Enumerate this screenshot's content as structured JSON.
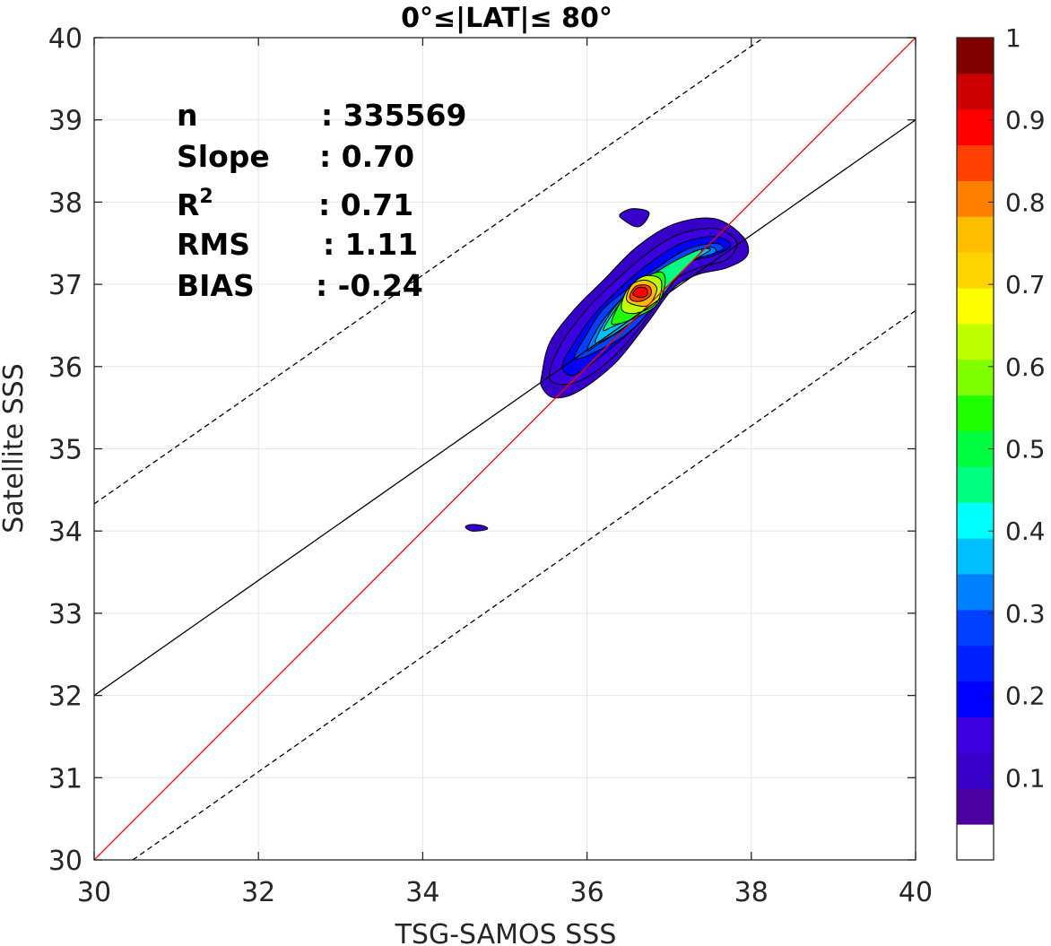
{
  "chart_data": {
    "type": "contour",
    "title": "0°≤|LAT|≤ 80°",
    "xlabel": "TSG-SAMOS SSS",
    "ylabel": "Satellite SSS",
    "xlim": [
      30,
      40
    ],
    "ylim": [
      30,
      40
    ],
    "xticks": [
      "30",
      "32",
      "34",
      "36",
      "38",
      "40"
    ],
    "yticks": [
      "30",
      "31",
      "32",
      "33",
      "34",
      "35",
      "36",
      "37",
      "38",
      "39",
      "40"
    ],
    "grid": true,
    "stats": [
      {
        "label": "n",
        "sep": ":",
        "value": "335569"
      },
      {
        "label": "Slope",
        "sep": ":",
        "value": "0.70"
      },
      {
        "label": "R",
        "sup": "2",
        "sep": ":",
        "value": "0.71"
      },
      {
        "label": "RMS",
        "sep": ":",
        "value": "1.11"
      },
      {
        "label": "BIAS",
        "sep": ":",
        "value": "-0.24"
      }
    ],
    "lines": {
      "one_to_one": {
        "color": "#ff0000",
        "x": [
          30,
          40
        ],
        "y": [
          30,
          40
        ]
      },
      "fit": {
        "color": "#000000",
        "x": [
          30,
          40
        ],
        "y": [
          32.0,
          39.0
        ]
      },
      "upper_bound": {
        "color": "#000000",
        "dash": true,
        "x": [
          30,
          38.15
        ],
        "y": [
          34.33,
          40
        ]
      },
      "lower_bound": {
        "color": "#000000",
        "dash": true,
        "x": [
          30.47,
          40
        ],
        "y": [
          30,
          36.68
        ]
      }
    },
    "contours": [
      {
        "level": 0.05,
        "color": "#3700c8",
        "points": [
          [
            35.45,
            35.9
          ],
          [
            35.55,
            36.3
          ],
          [
            35.85,
            36.7
          ],
          [
            36.2,
            37.05
          ],
          [
            36.6,
            37.45
          ],
          [
            37.05,
            37.73
          ],
          [
            37.55,
            37.8
          ],
          [
            37.9,
            37.58
          ],
          [
            37.95,
            37.35
          ],
          [
            37.7,
            37.2
          ],
          [
            37.35,
            37.12
          ],
          [
            37.05,
            36.95
          ],
          [
            36.75,
            36.55
          ],
          [
            36.35,
            36.05
          ],
          [
            35.9,
            35.7
          ],
          [
            35.6,
            35.62
          ],
          [
            35.45,
            35.75
          ]
        ]
      },
      {
        "level": 0.1,
        "color": "#3b00e0",
        "points": [
          [
            35.55,
            35.95
          ],
          [
            35.7,
            36.3
          ],
          [
            36.0,
            36.7
          ],
          [
            36.3,
            37.0
          ],
          [
            36.7,
            37.35
          ],
          [
            37.1,
            37.6
          ],
          [
            37.55,
            37.68
          ],
          [
            37.82,
            37.52
          ],
          [
            37.7,
            37.3
          ],
          [
            37.35,
            37.2
          ],
          [
            37.0,
            37.0
          ],
          [
            36.7,
            36.55
          ],
          [
            36.3,
            36.1
          ],
          [
            35.9,
            35.82
          ],
          [
            35.6,
            35.8
          ]
        ]
      },
      {
        "level": 0.15,
        "color": "#0000ff",
        "points": [
          [
            35.7,
            36.0
          ],
          [
            35.85,
            36.3
          ],
          [
            36.1,
            36.65
          ],
          [
            36.4,
            36.95
          ],
          [
            36.75,
            37.25
          ],
          [
            37.15,
            37.5
          ],
          [
            37.55,
            37.58
          ],
          [
            37.75,
            37.48
          ],
          [
            37.55,
            37.35
          ],
          [
            37.2,
            37.25
          ],
          [
            36.9,
            36.95
          ],
          [
            36.6,
            36.5
          ],
          [
            36.2,
            36.15
          ],
          [
            35.85,
            35.9
          ]
        ]
      },
      {
        "level": 0.2,
        "color": "#0040ff",
        "points": [
          [
            35.85,
            36.1
          ],
          [
            36.0,
            36.4
          ],
          [
            36.2,
            36.7
          ],
          [
            36.5,
            36.95
          ],
          [
            36.85,
            37.2
          ],
          [
            37.2,
            37.42
          ],
          [
            37.55,
            37.5
          ],
          [
            37.65,
            37.42
          ],
          [
            37.3,
            37.3
          ],
          [
            36.95,
            36.9
          ],
          [
            36.55,
            36.45
          ],
          [
            36.15,
            36.2
          ]
        ]
      },
      {
        "level": 0.25,
        "color": "#0080ff",
        "points": [
          [
            36.0,
            36.2
          ],
          [
            36.15,
            36.5
          ],
          [
            36.35,
            36.75
          ],
          [
            36.6,
            36.98
          ],
          [
            36.9,
            37.15
          ],
          [
            37.2,
            37.35
          ],
          [
            37.5,
            37.45
          ],
          [
            37.55,
            37.38
          ],
          [
            37.2,
            37.25
          ],
          [
            36.85,
            36.85
          ],
          [
            36.5,
            36.5
          ],
          [
            36.15,
            36.28
          ]
        ]
      },
      {
        "level": 0.3,
        "color": "#00bfff",
        "points": [
          [
            36.1,
            36.3
          ],
          [
            36.25,
            36.6
          ],
          [
            36.45,
            36.85
          ],
          [
            36.7,
            37.05
          ],
          [
            37.0,
            37.2
          ],
          [
            37.3,
            37.4
          ],
          [
            37.5,
            37.42
          ],
          [
            37.2,
            37.22
          ],
          [
            36.9,
            36.85
          ],
          [
            36.55,
            36.55
          ],
          [
            36.25,
            36.35
          ]
        ]
      },
      {
        "level": 0.4,
        "color": "#00ff80",
        "points": [
          [
            36.2,
            36.45
          ],
          [
            36.35,
            36.7
          ],
          [
            36.55,
            36.95
          ],
          [
            36.8,
            37.12
          ],
          [
            37.1,
            37.3
          ],
          [
            37.4,
            37.42
          ],
          [
            37.15,
            37.15
          ],
          [
            36.85,
            36.85
          ],
          [
            36.55,
            36.6
          ],
          [
            36.3,
            36.48
          ]
        ]
      },
      {
        "level": 0.5,
        "color": "#20ff00",
        "points": [
          [
            36.3,
            36.55
          ],
          [
            36.45,
            36.85
          ],
          [
            36.65,
            37.05
          ],
          [
            36.9,
            37.15
          ],
          [
            36.95,
            37.0
          ],
          [
            36.85,
            36.75
          ],
          [
            36.6,
            36.6
          ],
          [
            36.38,
            36.52
          ]
        ]
      },
      {
        "level": 0.6,
        "color": "#bfff00",
        "points": [
          [
            36.42,
            36.7
          ],
          [
            36.5,
            36.95
          ],
          [
            36.7,
            37.1
          ],
          [
            36.9,
            37.05
          ],
          [
            36.85,
            36.78
          ],
          [
            36.6,
            36.65
          ]
        ]
      },
      {
        "level": 0.7,
        "color": "#ffbf00",
        "points": [
          [
            36.48,
            36.82
          ],
          [
            36.55,
            37.0
          ],
          [
            36.72,
            37.05
          ],
          [
            36.85,
            36.95
          ],
          [
            36.75,
            36.75
          ],
          [
            36.58,
            36.75
          ]
        ]
      },
      {
        "level": 0.8,
        "color": "#ff4000",
        "points": [
          [
            36.52,
            36.86
          ],
          [
            36.6,
            36.98
          ],
          [
            36.75,
            36.98
          ],
          [
            36.78,
            36.88
          ],
          [
            36.68,
            36.8
          ],
          [
            36.56,
            36.8
          ]
        ]
      },
      {
        "level": 0.9,
        "color": "#ff0000",
        "points": [
          [
            36.56,
            36.88
          ],
          [
            36.62,
            36.96
          ],
          [
            36.72,
            36.95
          ],
          [
            36.73,
            36.87
          ],
          [
            36.65,
            36.84
          ]
        ]
      },
      {
        "level": 0.05,
        "color": "#3700c8",
        "points": [
          [
            34.52,
            34.05
          ],
          [
            34.6,
            34.08
          ],
          [
            34.75,
            34.06
          ],
          [
            34.78,
            34.02
          ],
          [
            34.6,
            34.0
          ]
        ]
      },
      {
        "level": 0.05,
        "color": "#3700c8",
        "points": [
          [
            36.4,
            37.85
          ],
          [
            36.55,
            37.92
          ],
          [
            36.75,
            37.88
          ],
          [
            36.7,
            37.75
          ],
          [
            36.6,
            37.7
          ],
          [
            36.45,
            37.78
          ]
        ]
      }
    ],
    "colorbar": {
      "ticks": [
        "0.1",
        "0.2",
        "0.3",
        "0.4",
        "0.5",
        "0.6",
        "0.7",
        "0.8",
        "0.9",
        "1"
      ],
      "levels": [
        "#ffffff",
        "#4b00a0",
        "#3700c8",
        "#3b00e0",
        "#0000ff",
        "#0020ff",
        "#0040ff",
        "#0080ff",
        "#00bfff",
        "#00ffff",
        "#00ff80",
        "#00ff40",
        "#20ff00",
        "#80ff00",
        "#bfff00",
        "#ffff00",
        "#ffd500",
        "#ffbf00",
        "#ff8000",
        "#ff4000",
        "#ff0000",
        "#cc0000",
        "#800000"
      ]
    }
  }
}
